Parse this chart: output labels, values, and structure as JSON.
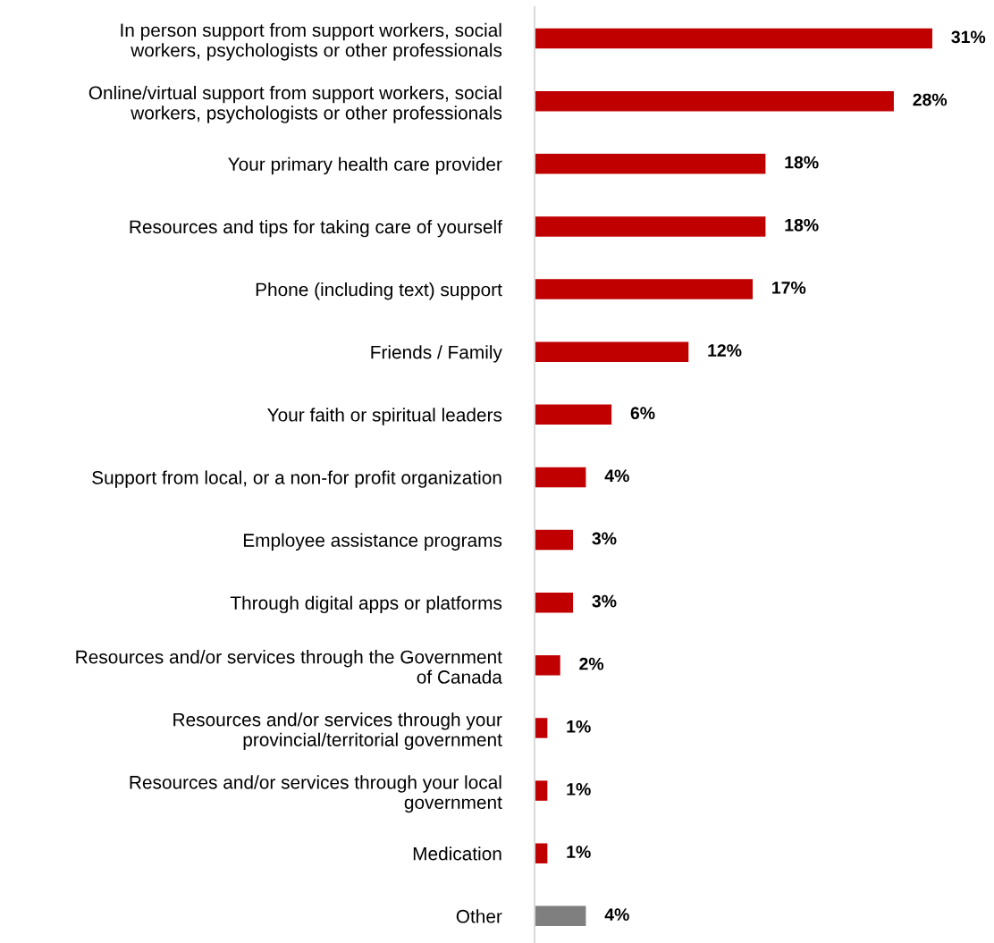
{
  "chart_data": {
    "type": "bar",
    "orientation": "horizontal",
    "categories": [
      "In person support from support workers, social\nworkers, psychologists or other professionals",
      "Online/virtual support from support workers, social\nworkers, psychologists or other professionals",
      "Your primary health care provider",
      "Resources and tips for taking care of yourself",
      "Phone (including text) support",
      "Friends / Family",
      "Your faith or spiritual leaders",
      "Support from local, or a non-for profit organization",
      "Employee assistance programs",
      "Through digital apps or platforms",
      "Resources and/or services through the Government\nof Canada",
      "Resources and/or services through your\nprovincial/territorial government",
      "Resources and/or services through your local\ngovernment",
      "Medication",
      "Other"
    ],
    "values": [
      31,
      28,
      18,
      18,
      17,
      12,
      6,
      4,
      3,
      3,
      2,
      1,
      1,
      1,
      4
    ],
    "value_labels": [
      "31%",
      "28%",
      "18%",
      "18%",
      "17%",
      "12%",
      "6%",
      "4%",
      "3%",
      "3%",
      "2%",
      "1%",
      "1%",
      "1%",
      "4%"
    ],
    "colors": [
      "#c00000",
      "#c00000",
      "#c00000",
      "#c00000",
      "#c00000",
      "#c00000",
      "#c00000",
      "#c00000",
      "#c00000",
      "#c00000",
      "#c00000",
      "#c00000",
      "#c00000",
      "#c00000",
      "#7f7f7f"
    ],
    "tick_labels": "y",
    "grid": false,
    "legend": false
  }
}
